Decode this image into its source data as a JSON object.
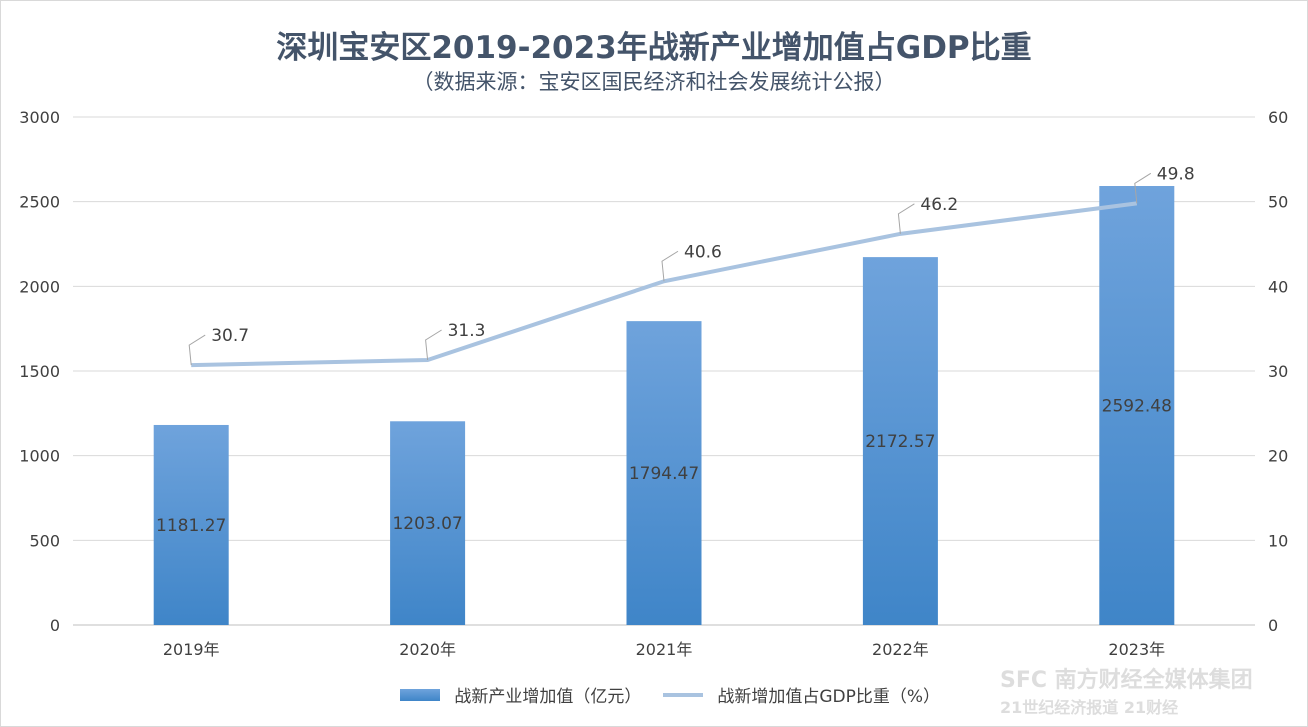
{
  "chart_data": {
    "type": "bar+line",
    "title": "深圳宝安区2019-2023年战新产业增加值占GDP比重",
    "subtitle": "（数据来源：宝安区国民经济和社会发展统计公报）",
    "categories": [
      "2019年",
      "2020年",
      "2021年",
      "2022年",
      "2023年"
    ],
    "series": [
      {
        "name": "战新产业增加值（亿元）",
        "type": "bar",
        "axis": "left",
        "values": [
          1181.27,
          1203.07,
          1794.47,
          2172.57,
          2592.48
        ],
        "labels": [
          "1181.27",
          "1203.07",
          "1794.47",
          "2172.57",
          "2592.48"
        ],
        "color": "#5b9bd5"
      },
      {
        "name": "战新增加值占GDP比重（%）",
        "type": "line",
        "axis": "right",
        "values": [
          30.7,
          31.3,
          40.6,
          46.2,
          49.8
        ],
        "labels": [
          "30.7",
          "31.3",
          "40.6",
          "46.2",
          "49.8"
        ],
        "color": "#a9c3e0"
      }
    ],
    "left_axis": {
      "ylim": [
        0,
        3000
      ],
      "ticks": [
        "0",
        "500",
        "1000",
        "1500",
        "2000",
        "2500",
        "3000"
      ]
    },
    "right_axis": {
      "ylim": [
        0,
        60
      ],
      "ticks": [
        "0",
        "10",
        "20",
        "30",
        "40",
        "50",
        "60"
      ]
    },
    "grid": true,
    "legend": "bottom"
  },
  "watermark": {
    "line1": "SFC 南方财经全媒体集团",
    "line2": "21世纪经济报道 21财经"
  }
}
